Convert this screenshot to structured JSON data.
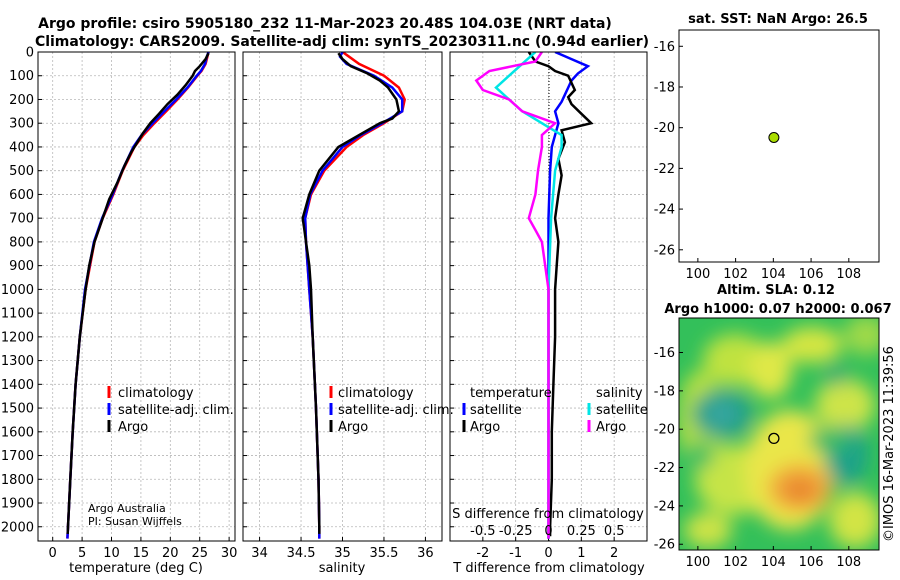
{
  "header": {
    "line1": "Argo profile: csiro 5905180_232 11-Mar-2023 20.48S 104.03E (NRT data)",
    "line2": "Climatology: CARS2009. Satellite-adj clim: synTS_20230311.nc (0.94d earlier)"
  },
  "colors": {
    "climatology": "#ff0000",
    "satellite": "#0000ff",
    "argo": "#000000",
    "sat_t_diff": "#00e5e5",
    "sat_s_diff": "#ff00ff",
    "marker": "#aadd00"
  },
  "panel_temp": {
    "xlabel": "temperature (deg C)",
    "legend": [
      "climatology",
      "satellite-adj. clim.",
      "Argo"
    ],
    "credit1": "Argo Australia",
    "credit2": "PI: Susan Wijffels"
  },
  "panel_sal": {
    "xlabel": "salinity",
    "legend": [
      "climatology",
      "satellite-adj. clim.",
      "Argo"
    ]
  },
  "panel_diff": {
    "xlabel": "T difference from climatology",
    "top_label": "S difference from climatology",
    "legend_t_title": "temperature",
    "legend_s_title": "salinity",
    "legend_t": [
      "satellite",
      "Argo"
    ],
    "legend_s": [
      "satellite",
      "Argo"
    ],
    "s_ticks": [
      "-0.5",
      "-0.25",
      "0",
      "0.25",
      "0.5"
    ]
  },
  "panel_sst": {
    "title": "sat. SST: NaN Argo: 26.5"
  },
  "panel_sla": {
    "title1": "Altim. SLA: 0.12",
    "title2": "Argo h1000: 0.07 h2000: 0.067"
  },
  "watermark": "©IMOS 16-Mar-2023 11:39:56",
  "chart_data": [
    {
      "type": "line",
      "name": "temperature profile",
      "xlabel": "temperature (deg C)",
      "ylabel": "depth",
      "xlim": [
        -2.5,
        31
      ],
      "ylim": [
        2060,
        0
      ],
      "xticks": [
        0,
        5,
        10,
        15,
        20,
        25,
        30
      ],
      "yticks": [
        0,
        100,
        200,
        300,
        400,
        500,
        600,
        700,
        800,
        900,
        1000,
        1100,
        1200,
        1300,
        1400,
        1500,
        1600,
        1700,
        1800,
        1900,
        2000
      ],
      "series": [
        {
          "name": "climatology",
          "depth": [
            0,
            20,
            50,
            80,
            100,
            150,
            200,
            250,
            300,
            350,
            400,
            500,
            600,
            700,
            800,
            1000,
            1200,
            1400,
            1600,
            1800,
            2000,
            2050
          ],
          "values": [
            26.5,
            26.3,
            26.0,
            25.3,
            24.6,
            23.0,
            21.2,
            19.3,
            17.3,
            15.4,
            13.9,
            11.9,
            10.3,
            8.5,
            7.1,
            5.6,
            4.6,
            3.9,
            3.4,
            3.0,
            2.6,
            2.5
          ]
        },
        {
          "name": "satellite-adj. clim.",
          "depth": [
            0,
            20,
            50,
            80,
            100,
            150,
            200,
            250,
            300,
            350,
            400,
            500,
            600,
            700,
            800,
            1000,
            1200,
            1400,
            1600,
            1800,
            2000,
            2050
          ],
          "values": [
            26.5,
            26.2,
            25.9,
            25.2,
            24.5,
            22.9,
            21.0,
            19.0,
            17.0,
            15.1,
            13.7,
            11.8,
            10.2,
            8.4,
            7.0,
            5.5,
            4.6,
            3.9,
            3.4,
            3.0,
            2.6,
            2.5
          ]
        },
        {
          "name": "Argo",
          "depth": [
            5,
            30,
            60,
            80,
            100,
            140,
            180,
            220,
            260,
            300,
            340,
            380,
            420,
            480,
            550,
            620,
            700,
            800,
            900,
            1000,
            1200,
            1400,
            1600,
            1800,
            2000,
            2030
          ],
          "values": [
            26.5,
            26.0,
            25.0,
            24.2,
            23.8,
            22.6,
            21.2,
            19.5,
            18.1,
            16.6,
            15.4,
            14.4,
            13.4,
            12.2,
            11.0,
            9.6,
            8.5,
            7.1,
            6.2,
            5.6,
            4.6,
            3.9,
            3.4,
            3.0,
            2.6,
            2.55
          ]
        }
      ]
    },
    {
      "type": "line",
      "name": "salinity profile",
      "xlabel": "salinity",
      "ylabel": "depth",
      "xlim": [
        33.8,
        36.2
      ],
      "ylim": [
        2060,
        0
      ],
      "xticks": [
        34,
        34.5,
        35,
        35.5,
        36
      ],
      "series": [
        {
          "name": "climatology",
          "depth": [
            0,
            20,
            50,
            100,
            150,
            200,
            250,
            300,
            350,
            400,
            500,
            600,
            700,
            800,
            1000,
            1200,
            1500,
            1800,
            2000,
            2050
          ],
          "values": [
            35.0,
            35.08,
            35.2,
            35.5,
            35.68,
            35.75,
            35.72,
            35.5,
            35.25,
            35.05,
            34.78,
            34.62,
            34.55,
            34.56,
            34.6,
            34.64,
            34.68,
            34.71,
            34.72,
            34.72
          ]
        },
        {
          "name": "satellite-adj. clim.",
          "depth": [
            0,
            20,
            50,
            100,
            150,
            200,
            250,
            300,
            350,
            400,
            500,
            600,
            700,
            800,
            1000,
            1200,
            1500,
            1800,
            2000,
            2050
          ],
          "values": [
            35.0,
            34.97,
            35.05,
            35.38,
            35.6,
            35.72,
            35.72,
            35.48,
            35.22,
            35.0,
            34.76,
            34.61,
            34.55,
            34.56,
            34.6,
            34.64,
            34.68,
            34.71,
            34.72,
            34.72
          ]
        },
        {
          "name": "Argo",
          "depth": [
            5,
            30,
            60,
            90,
            120,
            150,
            200,
            250,
            280,
            300,
            350,
            400,
            500,
            600,
            700,
            750,
            800,
            900,
            1000,
            1200,
            1500,
            1800,
            2000,
            2030
          ],
          "values": [
            34.95,
            35.0,
            35.1,
            35.3,
            35.45,
            35.55,
            35.65,
            35.68,
            35.6,
            35.45,
            35.2,
            34.95,
            34.72,
            34.6,
            34.52,
            34.54,
            34.56,
            34.6,
            34.62,
            34.64,
            34.68,
            34.71,
            34.72,
            34.72
          ]
        }
      ]
    },
    {
      "type": "line",
      "name": "difference from climatology",
      "xlabel": "T difference from climatology",
      "ylabel": "depth",
      "xlim": [
        -3,
        3
      ],
      "ylim": [
        2060,
        0
      ],
      "xticks": [
        -2,
        -1,
        0,
        1,
        2
      ],
      "series": [
        {
          "name": "T satellite",
          "depth": [
            0,
            30,
            60,
            90,
            120,
            150,
            180,
            210,
            250,
            300,
            350,
            400,
            500,
            700,
            1000,
            1500,
            2000,
            2050
          ],
          "values": [
            0.2,
            0.7,
            1.2,
            0.9,
            0.7,
            0.6,
            0.5,
            0.4,
            0.2,
            0.3,
            0.2,
            0.1,
            0.05,
            0.0,
            0.0,
            0.0,
            0.0,
            0.0
          ]
        },
        {
          "name": "T Argo",
          "depth": [
            0,
            40,
            60,
            80,
            100,
            130,
            160,
            190,
            220,
            260,
            300,
            330,
            380,
            450,
            520,
            600,
            700,
            800,
            900,
            1000,
            1200,
            1400,
            1600,
            1800,
            2000,
            2040
          ],
          "values": [
            -0.6,
            -0.4,
            0.0,
            0.2,
            0.6,
            0.7,
            0.8,
            0.6,
            0.7,
            1.0,
            1.3,
            0.4,
            0.5,
            0.3,
            0.4,
            0.3,
            0.2,
            0.3,
            0.25,
            0.2,
            0.2,
            0.15,
            0.1,
            0.1,
            0.05,
            0.05
          ]
        },
        {
          "name": "S satellite",
          "depth": [
            0,
            50,
            100,
            150,
            200,
            250,
            300,
            350,
            400,
            500,
            700,
            1000,
            1500,
            2000,
            2050
          ],
          "values": [
            -0.1,
            -0.2,
            -0.3,
            -0.4,
            -0.3,
            -0.2,
            -0.05,
            0.1,
            0.1,
            0.05,
            0.02,
            0.0,
            0.0,
            0.0,
            0.0
          ]
        },
        {
          "name": "S Argo",
          "depth": [
            0,
            40,
            80,
            120,
            160,
            200,
            250,
            300,
            350,
            400,
            500,
            600,
            700,
            750,
            800,
            1000,
            1500,
            2000,
            2050
          ],
          "values": [
            -0.05,
            -0.1,
            -0.45,
            -0.55,
            -0.5,
            -0.3,
            -0.2,
            0.05,
            -0.05,
            -0.05,
            -0.08,
            -0.1,
            -0.15,
            -0.1,
            -0.05,
            0.0,
            0.0,
            0.0,
            0.0
          ]
        }
      ]
    },
    {
      "type": "scatter",
      "name": "sat. SST",
      "title": "sat. SST: NaN Argo: 26.5",
      "xlim": [
        99,
        109.6
      ],
      "ylim": [
        -26.6,
        -15.2
      ],
      "xticks": [
        100,
        102,
        104,
        106,
        108
      ],
      "yticks": [
        -16,
        -18,
        -20,
        -22,
        -24,
        -26
      ],
      "points": [
        {
          "lon": 104.03,
          "lat": -20.48
        }
      ]
    },
    {
      "type": "heatmap",
      "name": "Altim. SLA",
      "title": "Altim. SLA: 0.12 / Argo h1000: 0.07 h2000: 0.067",
      "xlim": [
        99,
        109.6
      ],
      "ylim": [
        -26.3,
        -14.2
      ],
      "xticks": [
        100,
        102,
        104,
        106,
        108
      ],
      "yticks": [
        -16,
        -18,
        -20,
        -22,
        -24,
        -26
      ],
      "points": [
        {
          "lon": 104.03,
          "lat": -20.48
        }
      ]
    }
  ]
}
